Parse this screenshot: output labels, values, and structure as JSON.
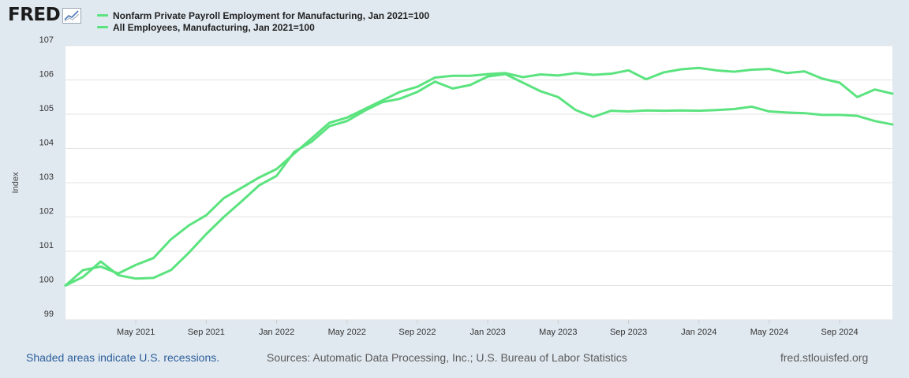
{
  "logo": {
    "text": "FRED",
    "icon": "chart-line-icon"
  },
  "chart_data": {
    "type": "line",
    "title": "",
    "xlabel": "",
    "ylabel": "Index",
    "ylim": [
      99,
      107
    ],
    "yticks": [
      99,
      100,
      101,
      102,
      103,
      104,
      105,
      106,
      107
    ],
    "x_start": "2021-01",
    "x_end": "2024-12",
    "xticks": [
      {
        "label": "May 2021",
        "month": 4
      },
      {
        "label": "Sep 2021",
        "month": 8
      },
      {
        "label": "Jan 2022",
        "month": 12
      },
      {
        "label": "May 2022",
        "month": 16
      },
      {
        "label": "Sep 2022",
        "month": 20
      },
      {
        "label": "Jan 2023",
        "month": 24
      },
      {
        "label": "May 2023",
        "month": 28
      },
      {
        "label": "Sep 2023",
        "month": 32
      },
      {
        "label": "Jan 2024",
        "month": 36
      },
      {
        "label": "May 2024",
        "month": 40
      },
      {
        "label": "Sep 2024",
        "month": 44
      }
    ],
    "grid": true,
    "series": [
      {
        "name": "Nonfarm Private Payroll Employment for Manufacturing, Jan 2021=100",
        "color": "#5be37f",
        "values": [
          100.0,
          100.45,
          100.55,
          100.35,
          100.6,
          100.8,
          101.35,
          101.75,
          102.05,
          102.55,
          102.85,
          103.15,
          103.4,
          103.85,
          104.3,
          104.75,
          104.9,
          105.15,
          105.4,
          105.65,
          105.8,
          106.07,
          106.12,
          106.12,
          106.17,
          106.2,
          106.08,
          106.16,
          106.13,
          106.2,
          106.15,
          106.18,
          106.28,
          106.02,
          106.22,
          106.31,
          106.35,
          106.28,
          106.24,
          106.3,
          106.32,
          106.2,
          106.25,
          106.04,
          105.92,
          105.5,
          105.72,
          105.6
        ]
      },
      {
        "name": "All Employees, Manufacturing, Jan 2021=100",
        "color": "#5be37f",
        "values": [
          100.0,
          100.25,
          100.7,
          100.3,
          100.2,
          100.22,
          100.45,
          100.95,
          101.5,
          102.0,
          102.45,
          102.92,
          103.2,
          103.9,
          104.2,
          104.65,
          104.8,
          105.1,
          105.35,
          105.45,
          105.65,
          105.95,
          105.75,
          105.85,
          106.1,
          106.17,
          105.92,
          105.67,
          105.5,
          105.12,
          104.92,
          105.1,
          105.08,
          105.11,
          105.1,
          105.11,
          105.1,
          105.12,
          105.15,
          105.22,
          105.08,
          105.05,
          105.03,
          104.98,
          104.98,
          104.95,
          104.8,
          104.7
        ]
      }
    ]
  },
  "footer": {
    "note": "Shaded areas indicate U.S. recessions.",
    "sources": "Sources: Automatic Data Processing, Inc.; U.S. Bureau of Labor Statistics",
    "site": "fred.stlouisfed.org"
  }
}
